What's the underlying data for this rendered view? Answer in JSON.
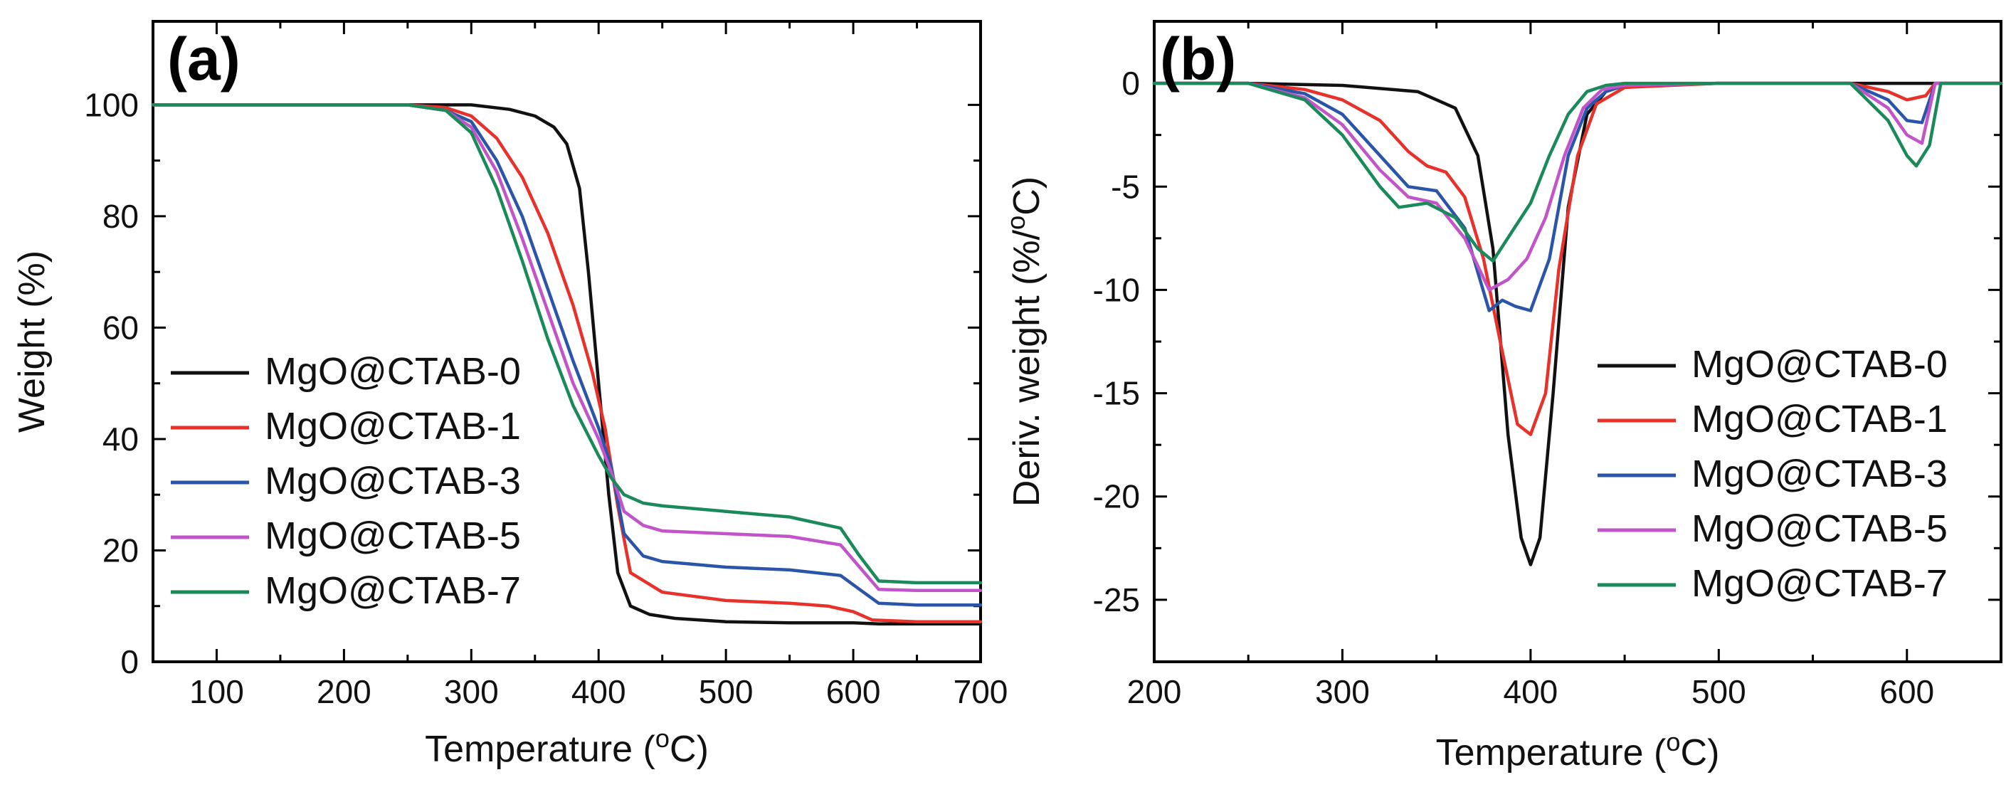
{
  "figure": {
    "panel_a_label": "(a)",
    "panel_b_label": "(b)"
  },
  "colors": {
    "MgO@CTAB-0": "#111111",
    "MgO@CTAB-1": "#e8312a",
    "MgO@CTAB-3": "#2b55a8",
    "MgO@CTAB-5": "#c254c9",
    "MgO@CTAB-7": "#1a8a5a"
  },
  "chart_data": [
    {
      "type": "line",
      "panel": "(a)",
      "title": "",
      "xlabel": "Temperature",
      "xlabel_unit": "(oC)",
      "ylabel": "Weight (%)",
      "xlim": [
        50,
        700
      ],
      "ylim": [
        0,
        115
      ],
      "xticks": [
        100,
        200,
        300,
        400,
        500,
        600,
        700
      ],
      "yticks": [
        0,
        20,
        40,
        60,
        80,
        100
      ],
      "legend_position": "center-left",
      "series": [
        {
          "name": "MgO@CTAB-0",
          "x": [
            50,
            250,
            300,
            330,
            350,
            365,
            375,
            385,
            392,
            400,
            408,
            415,
            425,
            440,
            460,
            500,
            550,
            600,
            620,
            700
          ],
          "y": [
            100,
            100,
            100,
            99.2,
            98,
            96,
            93,
            85,
            70,
            50,
            30,
            16,
            10,
            8.5,
            7.8,
            7.2,
            7,
            7,
            6.8,
            6.8
          ]
        },
        {
          "name": "MgO@CTAB-1",
          "x": [
            50,
            250,
            280,
            300,
            320,
            340,
            360,
            380,
            395,
            405,
            415,
            425,
            450,
            500,
            550,
            580,
            600,
            615,
            650,
            700
          ],
          "y": [
            100,
            100,
            99.5,
            98,
            94,
            87,
            77,
            64,
            52,
            42,
            28,
            16,
            12.5,
            11,
            10.5,
            10,
            9,
            7.5,
            7.2,
            7.2
          ]
        },
        {
          "name": "MgO@CTAB-3",
          "x": [
            50,
            250,
            280,
            300,
            320,
            340,
            360,
            380,
            400,
            410,
            420,
            435,
            450,
            500,
            550,
            590,
            605,
            620,
            650,
            700
          ],
          "y": [
            100,
            100,
            99,
            97,
            90,
            80,
            67,
            54,
            42,
            35,
            23,
            19,
            18,
            17,
            16.5,
            15.5,
            13,
            10.5,
            10.2,
            10.2
          ]
        },
        {
          "name": "MgO@CTAB-5",
          "x": [
            50,
            250,
            280,
            300,
            320,
            340,
            360,
            380,
            400,
            410,
            420,
            435,
            450,
            500,
            550,
            590,
            605,
            620,
            650,
            700
          ],
          "y": [
            100,
            100,
            99,
            96,
            88,
            76,
            63,
            50,
            40,
            34,
            27,
            24.5,
            23.5,
            23,
            22.5,
            21,
            17,
            13,
            12.8,
            12.8
          ]
        },
        {
          "name": "MgO@CTAB-7",
          "x": [
            50,
            250,
            280,
            300,
            320,
            340,
            360,
            380,
            400,
            410,
            420,
            435,
            450,
            500,
            550,
            590,
            605,
            620,
            650,
            700
          ],
          "y": [
            100,
            100,
            99,
            95,
            85,
            72,
            58,
            46,
            37,
            33,
            30,
            28.5,
            28,
            27,
            26,
            24,
            19,
            14.5,
            14.2,
            14.2
          ]
        }
      ]
    },
    {
      "type": "line",
      "panel": "(b)",
      "title": "",
      "xlabel": "Temperature",
      "xlabel_unit": "(oC)",
      "ylabel": "Deriv. weight (%/oC)",
      "xlim": [
        200,
        650
      ],
      "ylim": [
        -28,
        3
      ],
      "xticks": [
        200,
        300,
        400,
        500,
        600
      ],
      "yticks": [
        0,
        -5,
        -10,
        -15,
        -20,
        -25
      ],
      "legend_position": "right",
      "series": [
        {
          "name": "MgO@CTAB-0",
          "x": [
            200,
            250,
            300,
            340,
            360,
            372,
            380,
            388,
            395,
            400,
            405,
            412,
            420,
            430,
            440,
            450,
            500,
            550,
            650
          ],
          "y": [
            0,
            0,
            -0.1,
            -0.4,
            -1.2,
            -3.5,
            -8,
            -17,
            -22,
            -23.3,
            -22,
            -15,
            -6,
            -1.5,
            -0.4,
            -0.1,
            0,
            0,
            0
          ]
        },
        {
          "name": "MgO@CTAB-1",
          "x": [
            200,
            250,
            280,
            300,
            320,
            335,
            345,
            355,
            365,
            375,
            385,
            393,
            400,
            408,
            415,
            425,
            435,
            450,
            500,
            570,
            590,
            600,
            610,
            615,
            650
          ],
          "y": [
            0,
            0,
            -0.3,
            -0.8,
            -1.8,
            -3.3,
            -4,
            -4.3,
            -5.5,
            -8.5,
            -13,
            -16.5,
            -17,
            -15,
            -9,
            -3.5,
            -1,
            -0.2,
            0,
            0,
            -0.4,
            -0.8,
            -0.6,
            0,
            0
          ]
        },
        {
          "name": "MgO@CTAB-3",
          "x": [
            200,
            250,
            280,
            300,
            320,
            335,
            350,
            365,
            378,
            385,
            392,
            400,
            410,
            420,
            430,
            440,
            450,
            500,
            570,
            590,
            600,
            608,
            615,
            650
          ],
          "y": [
            0,
            0,
            -0.5,
            -1.5,
            -3.5,
            -5,
            -5.2,
            -7,
            -11,
            -10.5,
            -10.8,
            -11,
            -8.5,
            -3.5,
            -1.2,
            -0.4,
            -0.1,
            0,
            0,
            -0.8,
            -1.8,
            -1.9,
            0,
            0
          ]
        },
        {
          "name": "MgO@CTAB-5",
          "x": [
            200,
            250,
            280,
            300,
            320,
            335,
            350,
            365,
            378,
            388,
            398,
            408,
            418,
            428,
            438,
            450,
            500,
            570,
            590,
            600,
            608,
            615,
            650
          ],
          "y": [
            0,
            0,
            -0.7,
            -2,
            -4.2,
            -5.5,
            -5.8,
            -7.5,
            -10,
            -9.5,
            -8.5,
            -6.5,
            -3.5,
            -1.2,
            -0.3,
            -0.1,
            0,
            0,
            -1.2,
            -2.5,
            -2.9,
            0,
            0
          ]
        },
        {
          "name": "MgO@CTAB-7",
          "x": [
            200,
            250,
            280,
            300,
            320,
            330,
            345,
            360,
            372,
            380,
            390,
            400,
            410,
            420,
            430,
            440,
            450,
            500,
            570,
            590,
            600,
            605,
            612,
            618,
            650
          ],
          "y": [
            0,
            0,
            -0.8,
            -2.5,
            -5,
            -6,
            -5.8,
            -6.5,
            -8,
            -8.6,
            -7.2,
            -5.8,
            -3.5,
            -1.5,
            -0.4,
            -0.1,
            0,
            0,
            0,
            -1.8,
            -3.5,
            -4,
            -3,
            0,
            0
          ]
        }
      ]
    }
  ]
}
